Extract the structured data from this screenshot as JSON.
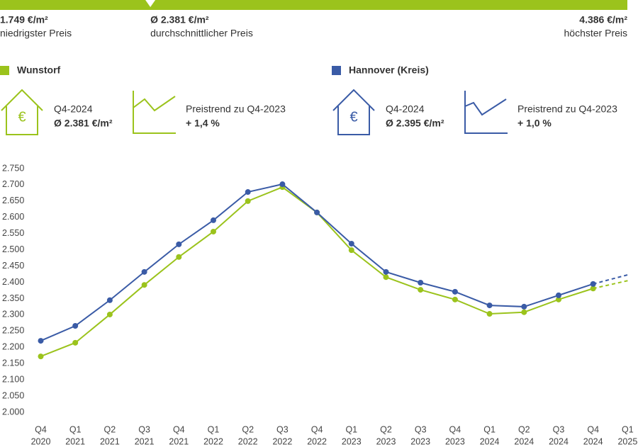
{
  "header": {
    "scale": {
      "color": "#9bc31c",
      "min": {
        "value": 1749,
        "label": "1.749 €/m²",
        "caption": "niedrigster Preis"
      },
      "avg": {
        "value": 2381,
        "label": "Ø 2.381 €/m²",
        "caption": "durchschnittlicher Preis"
      },
      "max": {
        "value": 4386,
        "label": "4.386 €/m²",
        "caption": "höchster Preis"
      }
    }
  },
  "chart_data": {
    "type": "line",
    "categories": [
      [
        "Q4",
        "2020"
      ],
      [
        "Q1",
        "2021"
      ],
      [
        "Q2",
        "2021"
      ],
      [
        "Q3",
        "2021"
      ],
      [
        "Q4",
        "2021"
      ],
      [
        "Q1",
        "2022"
      ],
      [
        "Q2",
        "2022"
      ],
      [
        "Q3",
        "2022"
      ],
      [
        "Q4",
        "2022"
      ],
      [
        "Q1",
        "2023"
      ],
      [
        "Q2",
        "2023"
      ],
      [
        "Q3",
        "2023"
      ],
      [
        "Q4",
        "2023"
      ],
      [
        "Q1",
        "2024"
      ],
      [
        "Q2",
        "2024"
      ],
      [
        "Q3",
        "2024"
      ],
      [
        "Q4",
        "2024"
      ],
      [
        "Q1",
        "2025"
      ]
    ],
    "projection_start": 16,
    "series": [
      {
        "name": "Wunstorf",
        "color": "#9bc31c",
        "period": "Q4-2024",
        "average": "Ø 2.381 €/m²",
        "trend_label": "Preistrend zu Q4-2023",
        "trend": "+ 1,4 %",
        "values": [
          2172,
          2214,
          2301,
          2392,
          2478,
          2556,
          2650,
          2693,
          2615,
          2499,
          2416,
          2377,
          2347,
          2303,
          2308,
          2347,
          2381,
          2405
        ]
      },
      {
        "name": "Hannover (Kreis)",
        "color": "#3a5ba6",
        "period": "Q4-2024",
        "average": "Ø 2.395 €/m²",
        "trend_label": "Preistrend zu Q4-2023",
        "trend": "+ 1,0 %",
        "values": [
          2220,
          2266,
          2345,
          2432,
          2517,
          2591,
          2678,
          2702,
          2615,
          2519,
          2432,
          2399,
          2371,
          2329,
          2325,
          2360,
          2395,
          2423
        ]
      }
    ],
    "ylim": [
      2000,
      2750
    ],
    "yticks": [
      {
        "value": 2000,
        "label": "2.000"
      },
      {
        "value": 2050,
        "label": "2.050"
      },
      {
        "value": 2100,
        "label": "2.100"
      },
      {
        "value": 2150,
        "label": "2.150"
      },
      {
        "value": 2200,
        "label": "2.200"
      },
      {
        "value": 2250,
        "label": "2.250"
      },
      {
        "value": 2300,
        "label": "2.300"
      },
      {
        "value": 2350,
        "label": "2.350"
      },
      {
        "value": 2400,
        "label": "2.400"
      },
      {
        "value": 2450,
        "label": "2.450"
      },
      {
        "value": 2500,
        "label": "2.500"
      },
      {
        "value": 2550,
        "label": "2.550"
      },
      {
        "value": 2600,
        "label": "2.600"
      },
      {
        "value": 2650,
        "label": "2.650"
      },
      {
        "value": 2700,
        "label": "2.700"
      },
      {
        "value": 2750,
        "label": "2.750"
      }
    ],
    "grid": false
  }
}
